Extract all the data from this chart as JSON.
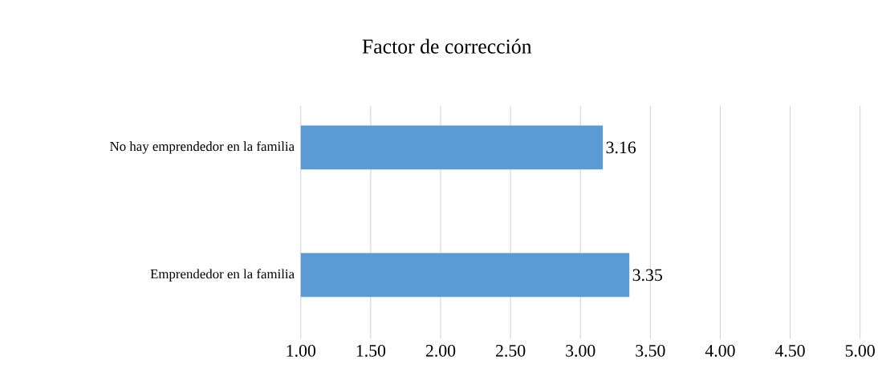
{
  "chart_data": {
    "type": "bar",
    "orientation": "horizontal",
    "title": "Factor de corrección",
    "categories": [
      "No hay emprendedor en la familia",
      "Emprendedor en la familia"
    ],
    "values": [
      3.16,
      3.35
    ],
    "color": "#5b9bd5",
    "data_labels": true,
    "xlim": [
      1,
      5
    ],
    "xticks": [
      {
        "value": 1,
        "label": "1.00"
      },
      {
        "value": 1.5,
        "label": "1.50"
      },
      {
        "value": 2,
        "label": "2.00"
      },
      {
        "value": 2.5,
        "label": "2.50"
      },
      {
        "value": 3,
        "label": "3.00"
      },
      {
        "value": 3.5,
        "label": "3.50"
      },
      {
        "value": 4,
        "label": "4.00"
      },
      {
        "value": 4.5,
        "label": "4.50"
      },
      {
        "value": 5,
        "label": "5.00"
      }
    ],
    "grid": "x"
  }
}
